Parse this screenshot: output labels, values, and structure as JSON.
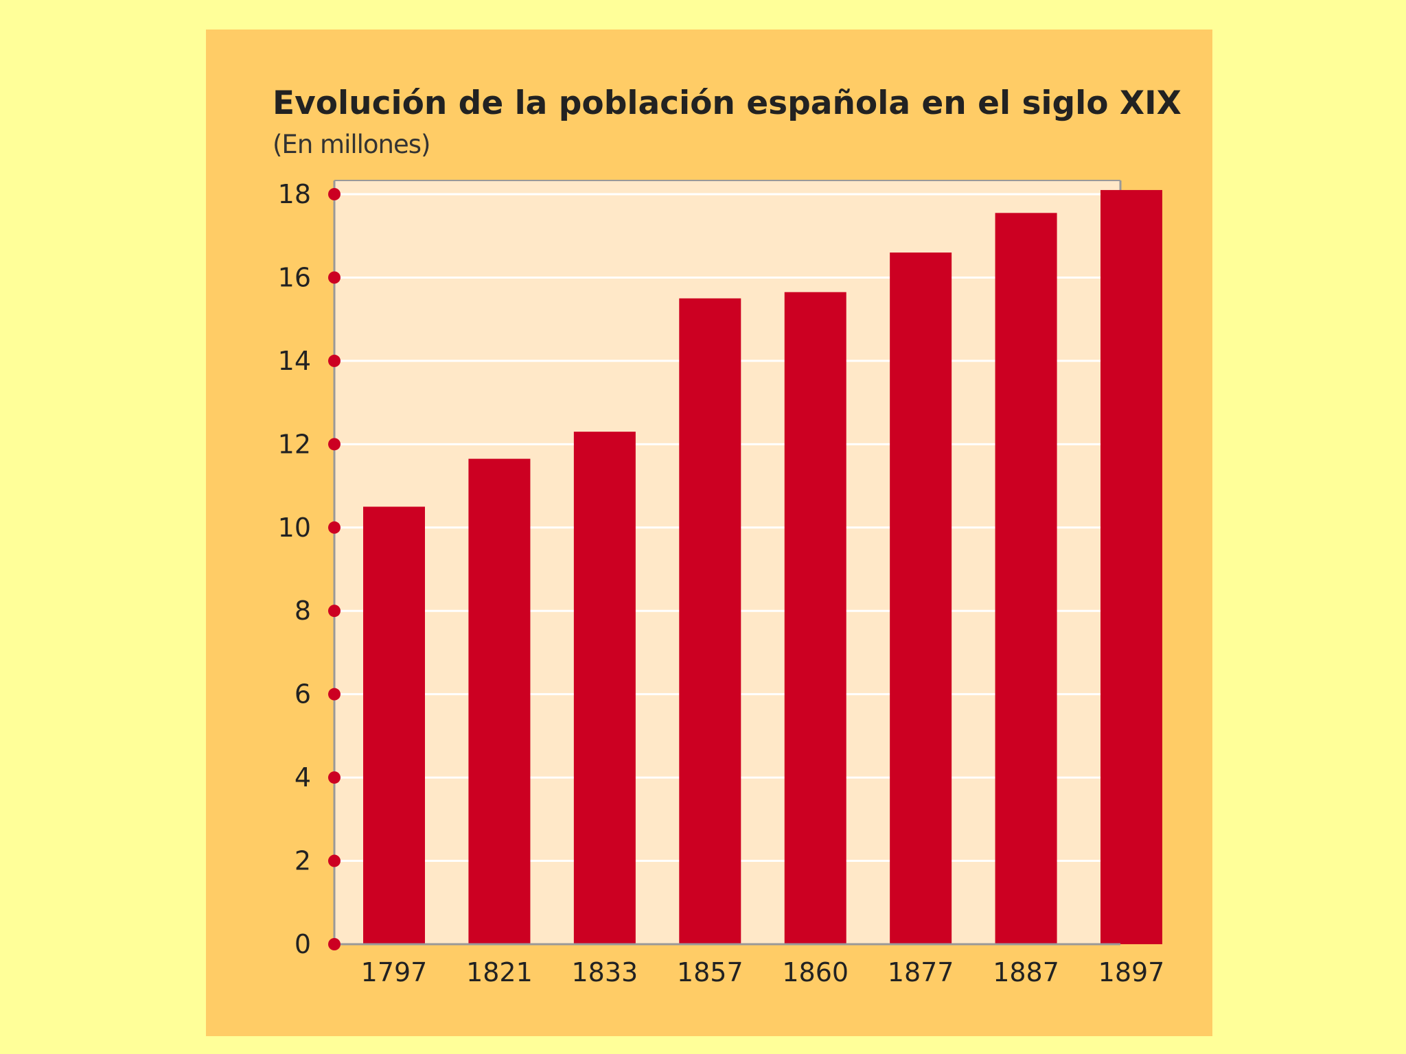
{
  "chart_data": {
    "type": "bar",
    "title": "Evolución de la población española en el siglo XIX",
    "subtitle": "(En millones)",
    "categories": [
      "1797",
      "1821",
      "1833",
      "1857",
      "1860",
      "1877",
      "1887",
      "1897"
    ],
    "values": [
      10.5,
      11.65,
      12.3,
      15.5,
      15.65,
      16.6,
      17.55,
      18.1
    ],
    "yticks": [
      0,
      2,
      4,
      6,
      8,
      10,
      12,
      14,
      16,
      18
    ],
    "ylim": [
      0,
      18.3
    ],
    "grid": true,
    "colors": {
      "page_background": "#FFFF99",
      "panel_background": "#FFCC66",
      "plot_background": "#FFE8C8",
      "bar": "#CC0022",
      "tick_marker": "#CC0022",
      "gridline": "#FFFFFF",
      "axis": "#999999"
    }
  }
}
